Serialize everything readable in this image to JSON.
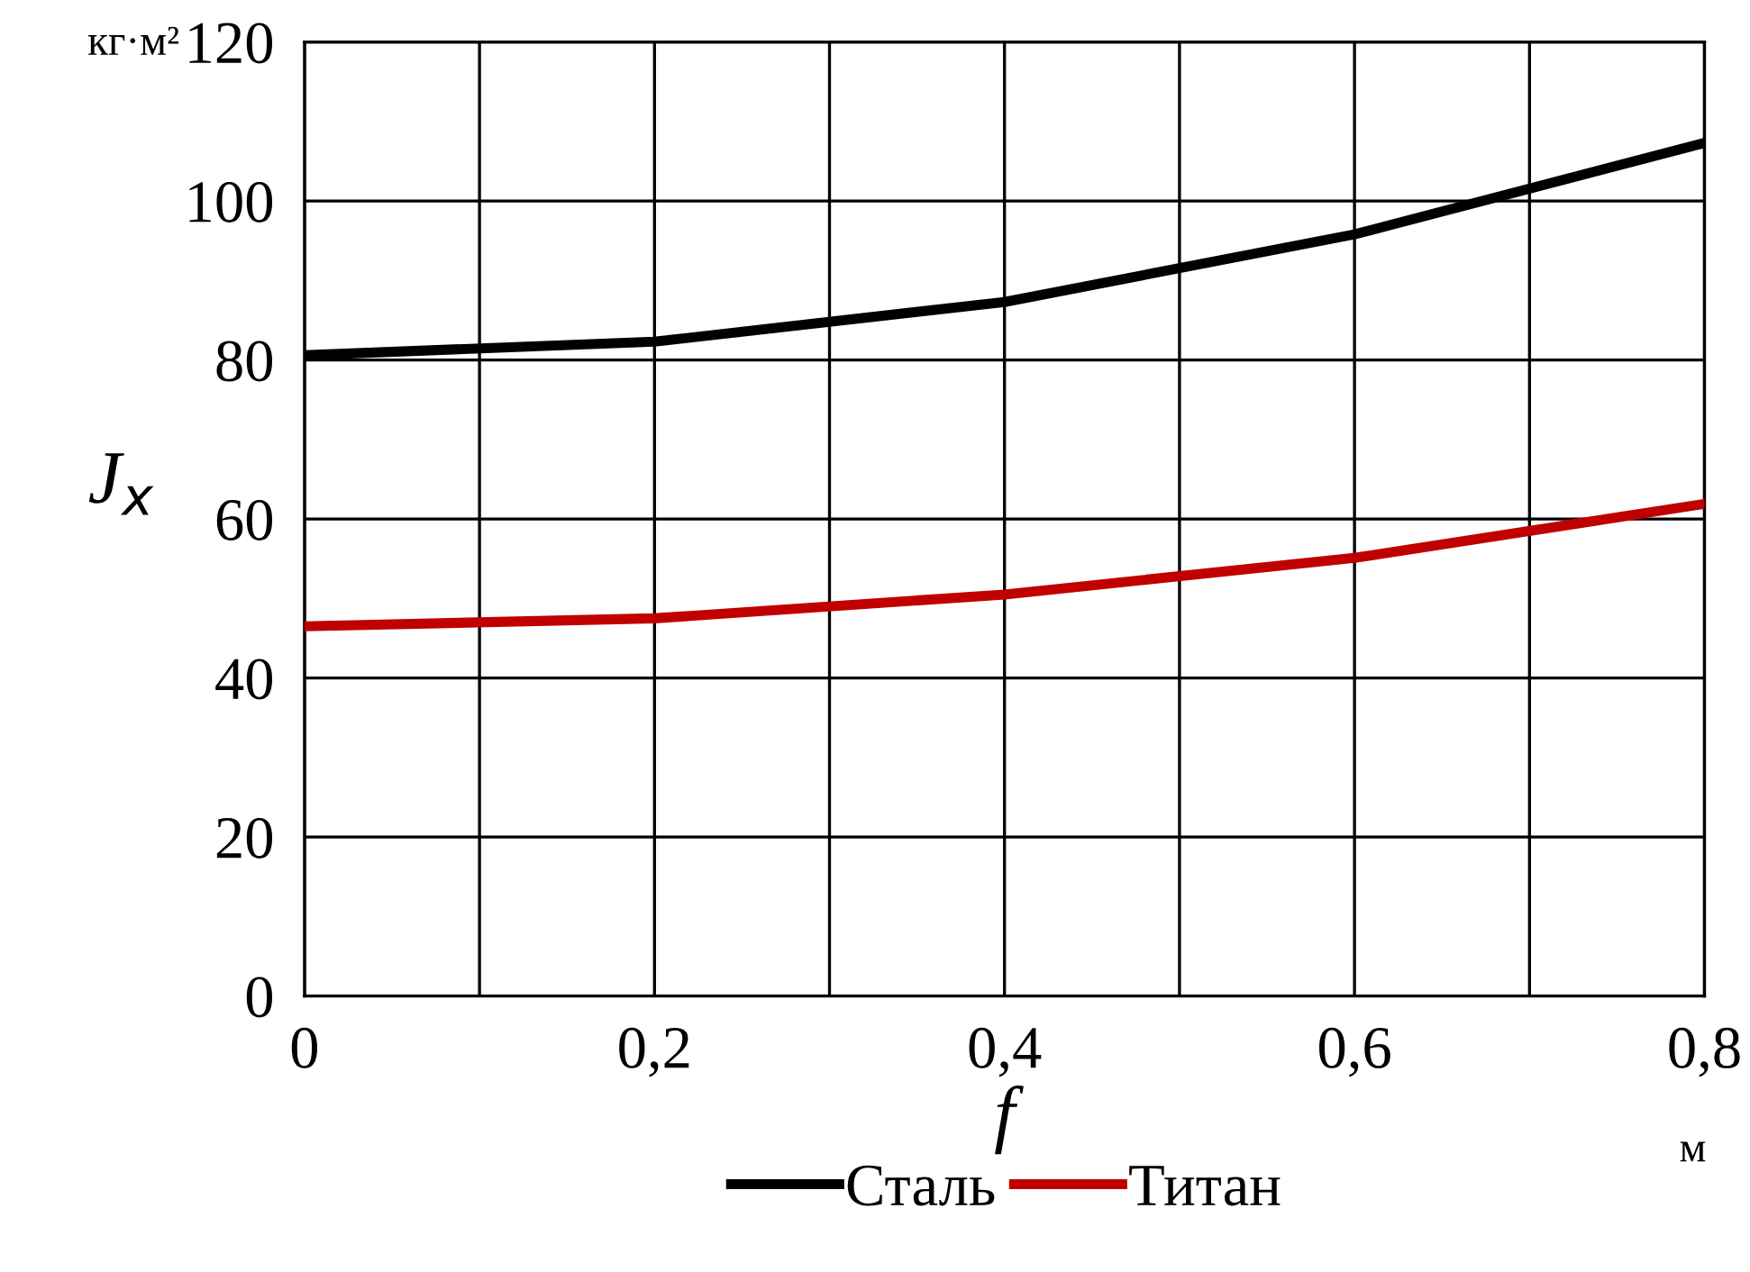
{
  "chart_data": {
    "type": "line",
    "x": [
      0,
      0.2,
      0.4,
      0.6,
      0.8
    ],
    "series": [
      {
        "name": "Сталь",
        "color": "#000000",
        "values": [
          80.6,
          82.3,
          87.3,
          95.8,
          107.3
        ]
      },
      {
        "name": "Титан",
        "color": "#c00000",
        "values": [
          46.5,
          47.5,
          50.5,
          55.1,
          61.9
        ]
      }
    ],
    "xlabel": "f",
    "ylabel": "J$_{x}$",
    "annotations": [
      "кг·м²",
      "м"
    ],
    "xlim": [
      0,
      0.8
    ],
    "xticks": [
      {
        "value": 0,
        "label": "0"
      },
      {
        "value": 0.1,
        "label": null
      },
      {
        "value": 0.2,
        "label": "0,2"
      },
      {
        "value": 0.3,
        "label": null
      },
      {
        "value": 0.4,
        "label": "0,4"
      },
      {
        "value": 0.5,
        "label": null
      },
      {
        "value": 0.6,
        "label": "0,6"
      },
      {
        "value": 0.7,
        "label": null
      },
      {
        "value": 0.8,
        "label": "0,8"
      }
    ],
    "ylim": [
      0,
      120
    ],
    "yticks": [
      0,
      20,
      40,
      60,
      80,
      100,
      120
    ],
    "grid": true,
    "legend": "bottom",
    "marker": "none",
    "line_style": "solid"
  }
}
